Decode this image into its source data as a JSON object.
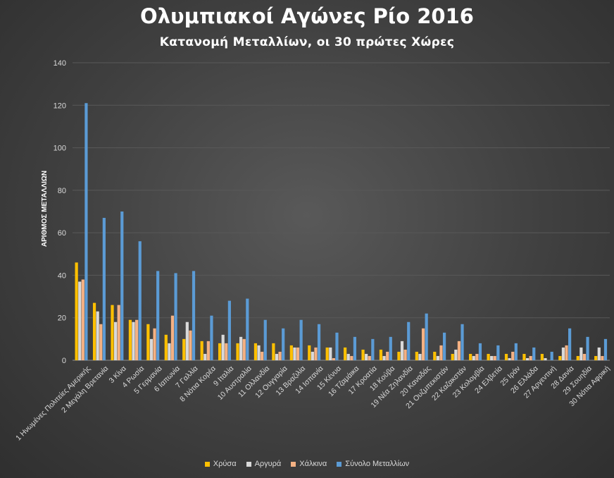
{
  "chart_data": {
    "type": "bar",
    "title": "Ολυμπιακοί Αγώνες Ρίο 2016",
    "subtitle": "Κατανομή Μεταλλίων, οι 30 πρώτες Χώρες",
    "ylabel": "ΑΡΙΘΜΟΣ ΜΕΤΑΛΛΙΩΝ",
    "ylim": [
      0,
      140
    ],
    "yticks": [
      0,
      20,
      40,
      60,
      80,
      100,
      120,
      140
    ],
    "grid": true,
    "legend_position": "bottom",
    "categories": [
      "1 Ηνωμένες Πολιτείες Αμερικής",
      "2 Μεγάλη Βρετανία",
      "3 Κίνα",
      "4 Ρωσία",
      "5 Γερμανία",
      "6 Ιαπωνία",
      "7 Γαλλία",
      "8 Νότια Κορέα",
      "9 Ιταλία",
      "10 Αυστραλία",
      "11 Ολλανδία",
      "12 Ουγγαρία",
      "13 Βραζιλία",
      "14 Ισπανία",
      "15 Κένυα",
      "16 Τζαμάικα",
      "17 Κροατία",
      "18 Κούβα",
      "19 Νέα Ζηλανδία",
      "20 Καναδάς",
      "21 Ουζμπεκιστάν",
      "22 Καζακστάν",
      "23 Κολομβία",
      "24 Ελβετία",
      "25 Ιράν",
      "26 Ελλάδα",
      "27 Αργεντινή",
      "28 Δανία",
      "29 Σουηδία",
      "30 Νότια Αφρική"
    ],
    "series": [
      {
        "name": "Χρύσα",
        "color": "#ffc000",
        "values": [
          46,
          27,
          26,
          19,
          17,
          12,
          10,
          9,
          8,
          8,
          8,
          8,
          7,
          7,
          6,
          6,
          5,
          5,
          4,
          4,
          4,
          3,
          3,
          3,
          3,
          3,
          3,
          2,
          2,
          2
        ]
      },
      {
        "name": "Αργυρά",
        "color": "#d9d9d9",
        "values": [
          37,
          23,
          18,
          18,
          10,
          8,
          18,
          3,
          12,
          11,
          7,
          3,
          6,
          4,
          6,
          3,
          3,
          2,
          9,
          3,
          2,
          5,
          2,
          2,
          1,
          1,
          1,
          6,
          6,
          6
        ]
      },
      {
        "name": "Χάλκινα",
        "color": "#f4b183",
        "values": [
          38,
          17,
          26,
          19,
          15,
          21,
          14,
          9,
          8,
          10,
          4,
          4,
          6,
          6,
          1,
          2,
          2,
          4,
          5,
          15,
          7,
          9,
          3,
          2,
          4,
          2,
          0,
          7,
          3,
          2
        ]
      },
      {
        "name": "Σύνολο Μεταλλίων",
        "color": "#5b9bd5",
        "values": [
          121,
          67,
          70,
          56,
          42,
          41,
          42,
          21,
          28,
          29,
          19,
          15,
          19,
          17,
          13,
          11,
          10,
          11,
          18,
          22,
          13,
          17,
          8,
          7,
          8,
          6,
          4,
          15,
          11,
          10
        ]
      }
    ]
  }
}
